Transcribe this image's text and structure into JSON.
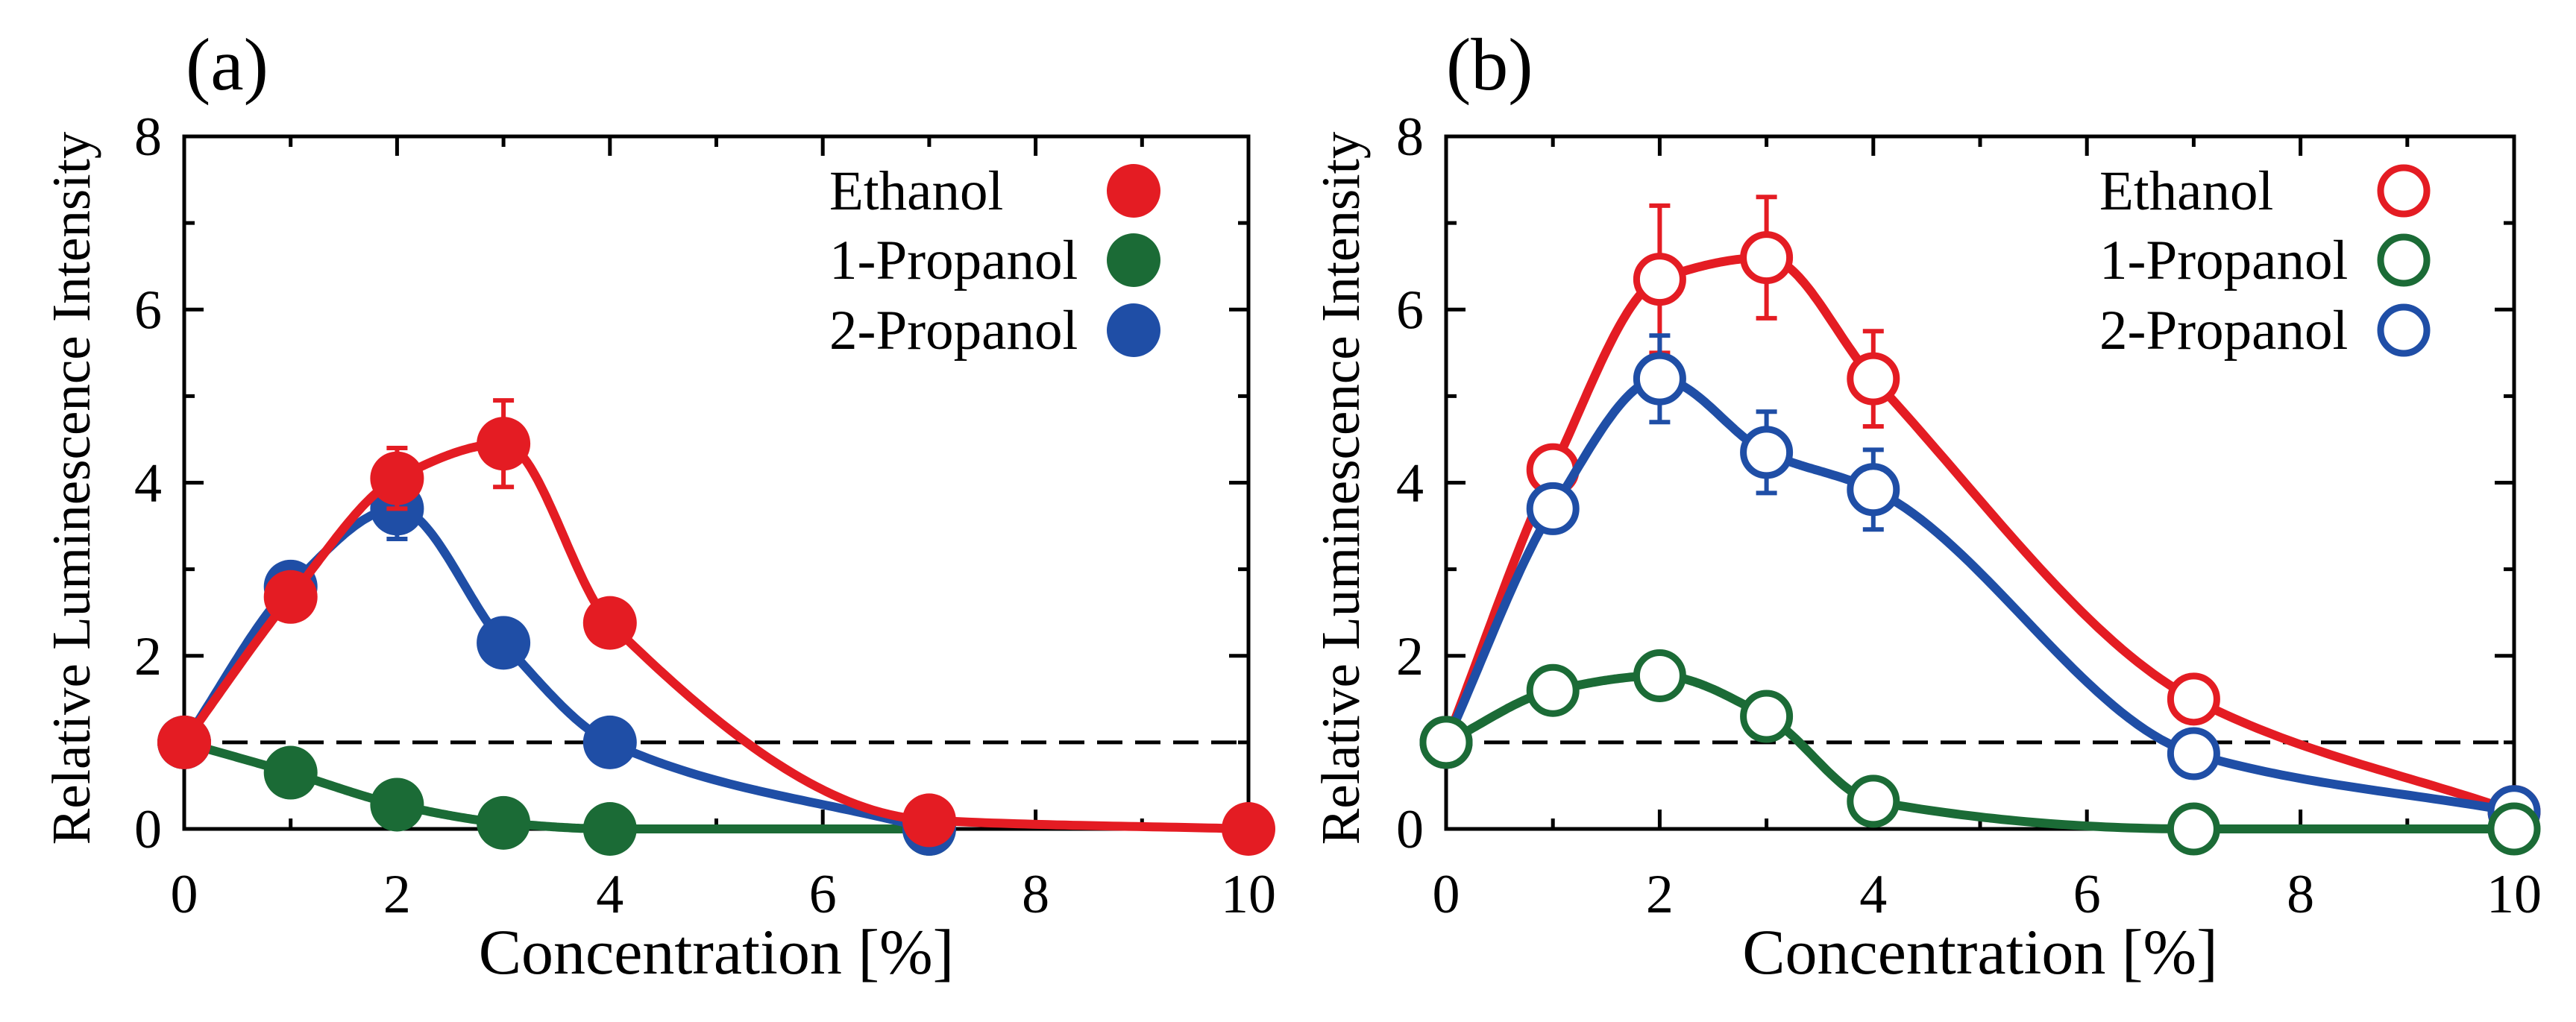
{
  "chart_data": [
    {
      "type": "line",
      "panel_label": "(a)",
      "xlabel": "Concentration [%]",
      "ylabel": "Relative Luminescence Intensity",
      "xlim": [
        0,
        10
      ],
      "ylim": [
        0,
        8
      ],
      "xticks": [
        0,
        2,
        4,
        6,
        8,
        10
      ],
      "yticks": [
        0,
        2,
        4,
        6,
        8
      ],
      "grid": false,
      "legend_position": "top-right",
      "marker_style": "filled",
      "reference_line": {
        "y": 1,
        "line_style": "dashed",
        "color": "#000000"
      },
      "series": [
        {
          "name": "Ethanol",
          "color": "#e41c23",
          "x": [
            0,
            1,
            2,
            3,
            4,
            7,
            10
          ],
          "y": [
            1.0,
            2.68,
            4.05,
            4.45,
            2.38,
            0.1,
            0.0
          ],
          "yerr": [
            0,
            0,
            0.35,
            0.5,
            0,
            0,
            0
          ]
        },
        {
          "name": "1-Propanol",
          "color": "#1b6b36",
          "x": [
            0,
            1,
            2,
            3,
            4,
            7
          ],
          "y": [
            1.0,
            0.65,
            0.28,
            0.07,
            0.0,
            0.0
          ],
          "yerr": [
            0,
            0,
            0,
            0,
            0,
            0
          ]
        },
        {
          "name": "2-Propanol",
          "color": "#1f4ea6",
          "x": [
            0,
            1,
            2,
            3,
            4,
            7
          ],
          "y": [
            1.0,
            2.8,
            3.7,
            2.15,
            1.0,
            0.0
          ],
          "yerr": [
            0,
            0,
            0.35,
            0,
            0,
            0
          ]
        }
      ]
    },
    {
      "type": "line",
      "panel_label": "(b)",
      "xlabel": "Concentration [%]",
      "ylabel": "Relative Luminescence Intensity",
      "xlim": [
        0,
        10
      ],
      "ylim": [
        0,
        8
      ],
      "xticks": [
        0,
        2,
        4,
        6,
        8,
        10
      ],
      "yticks": [
        0,
        2,
        4,
        6,
        8
      ],
      "grid": false,
      "legend_position": "top-right",
      "marker_style": "open",
      "reference_line": {
        "y": 1,
        "line_style": "dashed",
        "color": "#000000"
      },
      "series": [
        {
          "name": "Ethanol",
          "color": "#e41c23",
          "x": [
            0,
            1,
            2,
            3,
            4,
            7,
            10
          ],
          "y": [
            1.0,
            4.15,
            6.35,
            6.6,
            5.2,
            1.5,
            0.2
          ],
          "yerr": [
            0,
            0,
            0.85,
            0.7,
            0.55,
            0,
            0
          ]
        },
        {
          "name": "1-Propanol",
          "color": "#1b6b36",
          "x": [
            0,
            1,
            2,
            3,
            4,
            7,
            10
          ],
          "y": [
            1.0,
            1.6,
            1.77,
            1.3,
            0.32,
            0.0,
            0.0
          ],
          "yerr": [
            0,
            0,
            0,
            0,
            0,
            0,
            0
          ]
        },
        {
          "name": "2-Propanol",
          "color": "#1f4ea6",
          "x": [
            0,
            1,
            2,
            3,
            4,
            7,
            10
          ],
          "y": [
            1.0,
            3.7,
            5.2,
            4.35,
            3.92,
            0.87,
            0.2
          ],
          "yerr": [
            0,
            0,
            0.5,
            0.47,
            0.46,
            0,
            0
          ]
        }
      ]
    }
  ]
}
